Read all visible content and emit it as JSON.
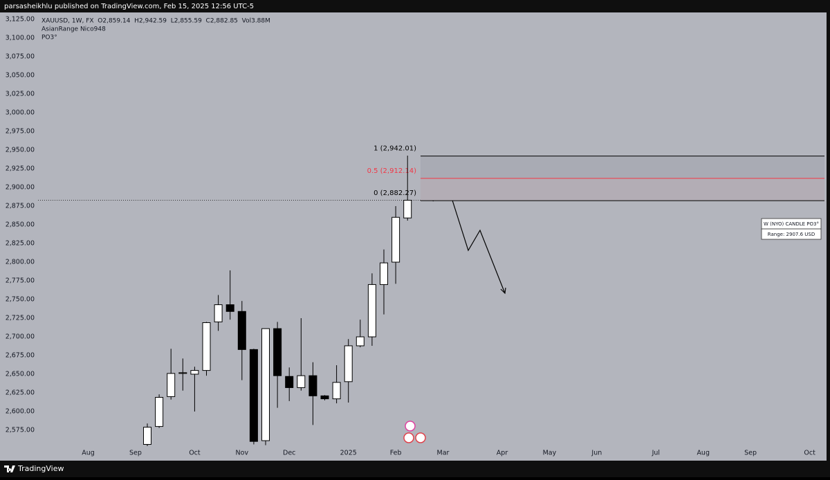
{
  "header": {
    "published": "parsasheikhlu published on TradingView.com, Feb 15, 2025 12:56 UTC-5",
    "brand": "TradingView"
  },
  "chart_data": {
    "type": "candlestick",
    "legend_lines": [
      "XAUUSD, 1W, FX  O2,859.14  H2,942.59  L2,855.59  C2,882.85  Vol3.88M",
      "AsianRange Nico948",
      "PO3°"
    ],
    "x": [
      0,
      1,
      2,
      3,
      4,
      5,
      6,
      7,
      8,
      9,
      10,
      11,
      12,
      13,
      14,
      15,
      16,
      17,
      18,
      19,
      20,
      21,
      22
    ],
    "open": [
      2556,
      2580,
      2620,
      2651,
      2650,
      2655,
      2720,
      2743,
      2734,
      2683,
      2561,
      2711,
      2647,
      2632,
      2648,
      2621,
      2617,
      2640,
      2688,
      2700,
      2770,
      2800,
      2859.14
    ],
    "high": [
      2584,
      2623,
      2684,
      2671,
      2660,
      2720,
      2756,
      2789,
      2748,
      2684,
      2711,
      2720,
      2659,
      2725,
      2666,
      2622,
      2662,
      2697,
      2723,
      2785,
      2817,
      2875,
      2942.59
    ],
    "low": [
      2545,
      2578,
      2616,
      2628,
      2600,
      2648,
      2708,
      2723,
      2642,
      2556,
      2555,
      2605,
      2614,
      2628,
      2582,
      2615,
      2611,
      2612,
      2686,
      2688,
      2730,
      2771,
      2855.59
    ],
    "close": [
      2579,
      2619,
      2651,
      2652,
      2655,
      2719,
      2743,
      2734,
      2683,
      2560,
      2711,
      2648,
      2632,
      2648,
      2621,
      2617,
      2639,
      2688,
      2700,
      2770,
      2799,
      2860,
      2882.85
    ],
    "up_color": "#ffffff",
    "down_color": "#000000",
    "xlim": [
      -9.24,
      57.25
    ],
    "xticks": [
      {
        "value": -5,
        "label": "Aug"
      },
      {
        "value": -1,
        "label": "Sep"
      },
      {
        "value": 4,
        "label": "Oct"
      },
      {
        "value": 8,
        "label": "Nov"
      },
      {
        "value": 12,
        "label": "Dec"
      },
      {
        "value": 17,
        "label": "2025"
      },
      {
        "value": 21,
        "label": "Feb"
      },
      {
        "value": 25,
        "label": "Mar"
      },
      {
        "value": 30,
        "label": "Apr"
      },
      {
        "value": 34,
        "label": "May"
      },
      {
        "value": 38,
        "label": "Jun"
      },
      {
        "value": 43,
        "label": "Jul"
      },
      {
        "value": 47,
        "label": "Aug"
      },
      {
        "value": 51,
        "label": "Sep"
      },
      {
        "value": 56,
        "label": "Oct"
      }
    ],
    "ylim": [
      2553.7,
      3134.3
    ],
    "yticks": [
      {
        "value": 2575,
        "label": "2,575.00"
      },
      {
        "value": 2600,
        "label": "2,600.00"
      },
      {
        "value": 2625,
        "label": "2,625.00"
      },
      {
        "value": 2650,
        "label": "2,650.00"
      },
      {
        "value": 2675,
        "label": "2,675.00"
      },
      {
        "value": 2700,
        "label": "2,700.00"
      },
      {
        "value": 2725,
        "label": "2,725.00"
      },
      {
        "value": 2750,
        "label": "2,750.00"
      },
      {
        "value": 2775,
        "label": "2,775.00"
      },
      {
        "value": 2800,
        "label": "2,800.00"
      },
      {
        "value": 2825,
        "label": "2,825.00"
      },
      {
        "value": 2850,
        "label": "2,850.00"
      },
      {
        "value": 2875,
        "label": "2,875.00"
      },
      {
        "value": 2900,
        "label": "2,900.00"
      },
      {
        "value": 2925,
        "label": "2,925.00"
      },
      {
        "value": 2950,
        "label": "2,950.00"
      },
      {
        "value": 2975,
        "label": "2,975.00"
      },
      {
        "value": 3000,
        "label": "3,000.00"
      },
      {
        "value": 3025,
        "label": "3,025.00"
      },
      {
        "value": 3050,
        "label": "3,050.00"
      },
      {
        "value": 3075,
        "label": "3,075.00"
      },
      {
        "value": 3100,
        "label": "3,100.00"
      },
      {
        "value": 3125,
        "label": "3,125.00"
      }
    ],
    "fib_levels": [
      {
        "value": 2942.01,
        "label": "1 (2,942.01)",
        "color": "#000000"
      },
      {
        "value": 2912.14,
        "label": "0.5 (2,912.14)",
        "color": "#f23645"
      },
      {
        "value": 2882.27,
        "label": "0 (2,882.27)",
        "color": "#000000"
      }
    ],
    "info_box": [
      "W (NYO) CANDLE PO3°",
      "Range: 2907.6 USD"
    ]
  }
}
